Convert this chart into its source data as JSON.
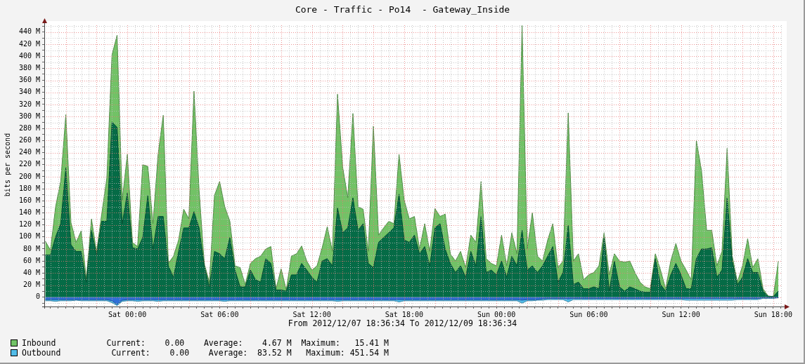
{
  "chart_data": {
    "type": "area",
    "title": "Core - Traffic - Po14  - Gateway_Inside",
    "xlabel": "From 2012/12/07 18:36:34 To 2012/12/09 18:36:34",
    "ylabel": "bits per second",
    "x": [
      "2012-12-07T18:40",
      "2012-12-07T19:00",
      "2012-12-07T19:20",
      "2012-12-07T19:40",
      "2012-12-07T20:00",
      "2012-12-07T20:20",
      "2012-12-07T20:40",
      "2012-12-07T21:00",
      "2012-12-07T21:20",
      "2012-12-07T21:40",
      "2012-12-07T22:00",
      "2012-12-07T22:20",
      "2012-12-07T22:40",
      "2012-12-07T23:00",
      "2012-12-07T23:20",
      "2012-12-07T23:40",
      "2012-12-08T00:00",
      "2012-12-08T00:20",
      "2012-12-08T00:40",
      "2012-12-08T01:00",
      "2012-12-08T01:20",
      "2012-12-08T01:40",
      "2012-12-08T02:00",
      "2012-12-08T02:20",
      "2012-12-08T02:40",
      "2012-12-08T03:00",
      "2012-12-08T03:20",
      "2012-12-08T03:40",
      "2012-12-08T04:00",
      "2012-12-08T04:20",
      "2012-12-08T04:40",
      "2012-12-08T05:00",
      "2012-12-08T05:20",
      "2012-12-08T05:40",
      "2012-12-08T06:00",
      "2012-12-08T06:20",
      "2012-12-08T06:40",
      "2012-12-08T07:00",
      "2012-12-08T07:20",
      "2012-12-08T07:40",
      "2012-12-08T08:00",
      "2012-12-08T08:20",
      "2012-12-08T08:40",
      "2012-12-08T09:00",
      "2012-12-08T09:20",
      "2012-12-08T09:40",
      "2012-12-08T10:00",
      "2012-12-08T10:20",
      "2012-12-08T10:40",
      "2012-12-08T11:00",
      "2012-12-08T11:20",
      "2012-12-08T11:40",
      "2012-12-08T12:00",
      "2012-12-08T12:20",
      "2012-12-08T12:40",
      "2012-12-08T13:00",
      "2012-12-08T13:20",
      "2012-12-08T13:40",
      "2012-12-08T14:00",
      "2012-12-08T14:20",
      "2012-12-08T14:40",
      "2012-12-08T15:00",
      "2012-12-08T15:20",
      "2012-12-08T15:40",
      "2012-12-08T16:00",
      "2012-12-08T16:20",
      "2012-12-08T16:40",
      "2012-12-08T17:00",
      "2012-12-08T17:20",
      "2012-12-08T17:40",
      "2012-12-08T18:00",
      "2012-12-08T18:20",
      "2012-12-08T18:40",
      "2012-12-08T19:00",
      "2012-12-08T19:20",
      "2012-12-08T19:40",
      "2012-12-08T20:00",
      "2012-12-08T20:20",
      "2012-12-08T20:40",
      "2012-12-08T21:00",
      "2012-12-08T21:20",
      "2012-12-08T21:40",
      "2012-12-08T22:00",
      "2012-12-08T22:20",
      "2012-12-08T22:40",
      "2012-12-08T23:00",
      "2012-12-08T23:20",
      "2012-12-08T23:40",
      "2012-12-09T00:00",
      "2012-12-09T00:20",
      "2012-12-09T00:40",
      "2012-12-09T01:00",
      "2012-12-09T01:20",
      "2012-12-09T01:40",
      "2012-12-09T02:00",
      "2012-12-09T02:20",
      "2012-12-09T02:40",
      "2012-12-09T03:00",
      "2012-12-09T03:20",
      "2012-12-09T03:40",
      "2012-12-09T04:00",
      "2012-12-09T04:20",
      "2012-12-09T04:40",
      "2012-12-09T05:00",
      "2012-12-09T05:20",
      "2012-12-09T05:40",
      "2012-12-09T06:00",
      "2012-12-09T06:20",
      "2012-12-09T06:40",
      "2012-12-09T07:00",
      "2012-12-09T07:20",
      "2012-12-09T07:40",
      "2012-12-09T08:00",
      "2012-12-09T08:20",
      "2012-12-09T08:40",
      "2012-12-09T09:00",
      "2012-12-09T09:20",
      "2012-12-09T09:40",
      "2012-12-09T10:00",
      "2012-12-09T10:20",
      "2012-12-09T10:40",
      "2012-12-09T11:00",
      "2012-12-09T11:20",
      "2012-12-09T11:40",
      "2012-12-09T12:00",
      "2012-12-09T12:20",
      "2012-12-09T12:40",
      "2012-12-09T13:00",
      "2012-12-09T13:20",
      "2012-12-09T13:40",
      "2012-12-09T14:00",
      "2012-12-09T14:20",
      "2012-12-09T14:40",
      "2012-12-09T15:00",
      "2012-12-09T15:20",
      "2012-12-09T15:40",
      "2012-12-09T16:00",
      "2012-12-09T16:20",
      "2012-12-09T16:40",
      "2012-12-09T17:00",
      "2012-12-09T17:20",
      "2012-12-09T17:40",
      "2012-12-09T18:00",
      "2012-12-09T18:20"
    ],
    "xlim": [
      "2012-12-07T18:36",
      "2012-12-09T18:36"
    ],
    "xticks": [
      {
        "value": "2012-12-07T19:00",
        "label": null
      },
      {
        "value": "2012-12-07T19:30",
        "label": null
      },
      {
        "value": "2012-12-07T20:00",
        "label": null
      },
      {
        "value": "2012-12-07T20:30",
        "label": null
      },
      {
        "value": "2012-12-07T21:00",
        "label": null
      },
      {
        "value": "2012-12-07T21:30",
        "label": null
      },
      {
        "value": "2012-12-07T22:00",
        "label": null
      },
      {
        "value": "2012-12-07T22:30",
        "label": null
      },
      {
        "value": "2012-12-07T23:00",
        "label": null
      },
      {
        "value": "2012-12-07T23:30",
        "label": null
      },
      {
        "value": "2012-12-08T00:00",
        "label": "Sat 00:00"
      },
      {
        "value": "2012-12-08T00:30",
        "label": null
      },
      {
        "value": "2012-12-08T01:00",
        "label": null
      },
      {
        "value": "2012-12-08T01:30",
        "label": null
      },
      {
        "value": "2012-12-08T02:00",
        "label": null
      },
      {
        "value": "2012-12-08T02:30",
        "label": null
      },
      {
        "value": "2012-12-08T03:00",
        "label": null
      },
      {
        "value": "2012-12-08T03:30",
        "label": null
      },
      {
        "value": "2012-12-08T04:00",
        "label": null
      },
      {
        "value": "2012-12-08T04:30",
        "label": null
      },
      {
        "value": "2012-12-08T05:00",
        "label": null
      },
      {
        "value": "2012-12-08T05:30",
        "label": null
      },
      {
        "value": "2012-12-08T06:00",
        "label": "Sat 06:00"
      },
      {
        "value": "2012-12-08T06:30",
        "label": null
      },
      {
        "value": "2012-12-08T07:00",
        "label": null
      },
      {
        "value": "2012-12-08T07:30",
        "label": null
      },
      {
        "value": "2012-12-08T08:00",
        "label": null
      },
      {
        "value": "2012-12-08T08:30",
        "label": null
      },
      {
        "value": "2012-12-08T09:00",
        "label": null
      },
      {
        "value": "2012-12-08T09:30",
        "label": null
      },
      {
        "value": "2012-12-08T10:00",
        "label": null
      },
      {
        "value": "2012-12-08T10:30",
        "label": null
      },
      {
        "value": "2012-12-08T11:00",
        "label": null
      },
      {
        "value": "2012-12-08T11:30",
        "label": null
      },
      {
        "value": "2012-12-08T12:00",
        "label": "Sat 12:00"
      },
      {
        "value": "2012-12-08T12:30",
        "label": null
      },
      {
        "value": "2012-12-08T13:00",
        "label": null
      },
      {
        "value": "2012-12-08T13:30",
        "label": null
      },
      {
        "value": "2012-12-08T14:00",
        "label": null
      },
      {
        "value": "2012-12-08T14:30",
        "label": null
      },
      {
        "value": "2012-12-08T15:00",
        "label": null
      },
      {
        "value": "2012-12-08T15:30",
        "label": null
      },
      {
        "value": "2012-12-08T16:00",
        "label": null
      },
      {
        "value": "2012-12-08T16:30",
        "label": null
      },
      {
        "value": "2012-12-08T17:00",
        "label": null
      },
      {
        "value": "2012-12-08T17:30",
        "label": null
      },
      {
        "value": "2012-12-08T18:00",
        "label": "Sat 18:00"
      },
      {
        "value": "2012-12-08T18:30",
        "label": null
      },
      {
        "value": "2012-12-08T19:00",
        "label": null
      },
      {
        "value": "2012-12-08T19:30",
        "label": null
      },
      {
        "value": "2012-12-08T20:00",
        "label": null
      },
      {
        "value": "2012-12-08T20:30",
        "label": null
      },
      {
        "value": "2012-12-08T21:00",
        "label": null
      },
      {
        "value": "2012-12-08T21:30",
        "label": null
      },
      {
        "value": "2012-12-08T22:00",
        "label": null
      },
      {
        "value": "2012-12-08T22:30",
        "label": null
      },
      {
        "value": "2012-12-08T23:00",
        "label": null
      },
      {
        "value": "2012-12-08T23:30",
        "label": null
      },
      {
        "value": "2012-12-09T00:00",
        "label": "Sun 00:00"
      },
      {
        "value": "2012-12-09T00:30",
        "label": null
      },
      {
        "value": "2012-12-09T01:00",
        "label": null
      },
      {
        "value": "2012-12-09T01:30",
        "label": null
      },
      {
        "value": "2012-12-09T02:00",
        "label": null
      },
      {
        "value": "2012-12-09T02:30",
        "label": null
      },
      {
        "value": "2012-12-09T03:00",
        "label": null
      },
      {
        "value": "2012-12-09T03:30",
        "label": null
      },
      {
        "value": "2012-12-09T04:00",
        "label": null
      },
      {
        "value": "2012-12-09T04:30",
        "label": null
      },
      {
        "value": "2012-12-09T05:00",
        "label": null
      },
      {
        "value": "2012-12-09T05:30",
        "label": null
      },
      {
        "value": "2012-12-09T06:00",
        "label": "Sun 06:00"
      },
      {
        "value": "2012-12-09T06:30",
        "label": null
      },
      {
        "value": "2012-12-09T07:00",
        "label": null
      },
      {
        "value": "2012-12-09T07:30",
        "label": null
      },
      {
        "value": "2012-12-09T08:00",
        "label": null
      },
      {
        "value": "2012-12-09T08:30",
        "label": null
      },
      {
        "value": "2012-12-09T09:00",
        "label": null
      },
      {
        "value": "2012-12-09T09:30",
        "label": null
      },
      {
        "value": "2012-12-09T10:00",
        "label": null
      },
      {
        "value": "2012-12-09T10:30",
        "label": null
      },
      {
        "value": "2012-12-09T11:00",
        "label": null
      },
      {
        "value": "2012-12-09T11:30",
        "label": null
      },
      {
        "value": "2012-12-09T12:00",
        "label": "Sun 12:00"
      },
      {
        "value": "2012-12-09T12:30",
        "label": null
      },
      {
        "value": "2012-12-09T13:00",
        "label": null
      },
      {
        "value": "2012-12-09T13:30",
        "label": null
      },
      {
        "value": "2012-12-09T14:00",
        "label": null
      },
      {
        "value": "2012-12-09T14:30",
        "label": null
      },
      {
        "value": "2012-12-09T15:00",
        "label": null
      },
      {
        "value": "2012-12-09T15:30",
        "label": null
      },
      {
        "value": "2012-12-09T16:00",
        "label": null
      },
      {
        "value": "2012-12-09T16:30",
        "label": null
      },
      {
        "value": "2012-12-09T17:00",
        "label": null
      },
      {
        "value": "2012-12-09T17:30",
        "label": null
      },
      {
        "value": "2012-12-09T18:00",
        "label": "Sun 18:00"
      },
      {
        "value": "2012-12-09T18:30",
        "label": null
      }
    ],
    "ylim": [
      -15.5,
      451.5
    ],
    "yticks": [
      {
        "value": -10,
        "label": null
      },
      0,
      {
        "value": 10,
        "label": null
      },
      {
        "value": 20,
        "label": "20 M"
      },
      {
        "value": 30,
        "label": null
      },
      {
        "value": 40,
        "label": "40 M"
      },
      {
        "value": 50,
        "label": null
      },
      {
        "value": 60,
        "label": "60 M"
      },
      {
        "value": 70,
        "label": null
      },
      {
        "value": 80,
        "label": "80 M"
      },
      {
        "value": 90,
        "label": null
      },
      {
        "value": 100,
        "label": "100 M"
      },
      {
        "value": 110,
        "label": null
      },
      {
        "value": 120,
        "label": "120 M"
      },
      {
        "value": 130,
        "label": null
      },
      {
        "value": 140,
        "label": "140 M"
      },
      {
        "value": 150,
        "label": null
      },
      {
        "value": 160,
        "label": "160 M"
      },
      {
        "value": 170,
        "label": null
      },
      {
        "value": 180,
        "label": "180 M"
      },
      {
        "value": 190,
        "label": null
      },
      {
        "value": 200,
        "label": "200 M"
      },
      {
        "value": 210,
        "label": null
      },
      {
        "value": 220,
        "label": "220 M"
      },
      {
        "value": 230,
        "label": null
      },
      {
        "value": 240,
        "label": "240 M"
      },
      {
        "value": 250,
        "label": null
      },
      {
        "value": 260,
        "label": "260 M"
      },
      {
        "value": 270,
        "label": null
      },
      {
        "value": 280,
        "label": "280 M"
      },
      {
        "value": 290,
        "label": null
      },
      {
        "value": 300,
        "label": "300 M"
      },
      {
        "value": 310,
        "label": null
      },
      {
        "value": 320,
        "label": "320 M"
      },
      {
        "value": 330,
        "label": null
      },
      {
        "value": 340,
        "label": "340 M"
      },
      {
        "value": 350,
        "label": null
      },
      {
        "value": 360,
        "label": "360 M"
      },
      {
        "value": 370,
        "label": null
      },
      {
        "value": 380,
        "label": "380 M"
      },
      {
        "value": 390,
        "label": null
      },
      {
        "value": 400,
        "label": "400 M"
      },
      {
        "value": 410,
        "label": null
      },
      {
        "value": 420,
        "label": "420 M"
      },
      {
        "value": 430,
        "label": null
      },
      {
        "value": 440,
        "label": "440 M"
      },
      {
        "value": 450,
        "label": null
      }
    ],
    "series": [
      {
        "name": "Inbound",
        "color": "#72c266",
        "values": [
          93,
          78,
          150,
          192,
          303,
          124,
          91,
          110,
          30,
          130,
          75,
          138,
          198,
          402,
          435,
          161,
          237,
          91,
          84,
          220,
          217,
          122,
          237,
          302,
          56,
          68,
          95,
          146,
          130,
          342,
          177,
          56,
          25,
          169,
          192,
          150,
          126,
          52,
          49,
          21,
          56,
          64,
          68,
          80,
          84,
          14,
          47,
          12,
          68,
          72,
          85,
          60,
          45,
          52,
          82,
          117,
          76,
          337,
          216,
          165,
          305,
          150,
          146,
          76,
          284,
          103,
          115,
          126,
          122,
          237,
          161,
          130,
          134,
          80,
          122,
          76,
          147,
          134,
          138,
          72,
          60,
          76,
          49,
          103,
          91,
          192,
          64,
          56,
          52,
          103,
          52,
          107,
          72,
          451,
          80,
          140,
          68,
          60,
          95,
          122,
          49,
          60,
          306,
          60,
          72,
          29,
          37,
          41,
          52,
          107,
          37,
          72,
          60,
          58,
          60,
          41,
          25,
          17,
          14,
          72,
          45,
          14,
          60,
          89,
          60,
          45,
          29,
          260,
          210,
          111,
          111,
          52,
          76,
          247,
          68,
          25,
          52,
          97,
          49,
          64,
          14,
          2,
          1,
          60
        ]
      },
      {
        "color": "#056b46",
        "values": [
          70,
          70,
          100,
          122,
          215,
          87,
          76,
          76,
          25,
          111,
          70,
          126,
          126,
          291,
          282,
          122,
          173,
          82,
          80,
          99,
          169,
          80,
          134,
          134,
          52,
          33,
          76,
          115,
          115,
          142,
          115,
          52,
          17,
          76,
          72,
          64,
          99,
          45,
          17,
          17,
          45,
          29,
          25,
          64,
          56,
          12,
          12,
          10,
          37,
          37,
          56,
          45,
          33,
          25,
          60,
          64,
          52,
          148,
          107,
          115,
          165,
          111,
          122,
          56,
          49,
          91,
          99,
          107,
          115,
          171,
          95,
          91,
          103,
          72,
          84,
          52,
          115,
          122,
          80,
          56,
          41,
          52,
          33,
          76,
          52,
          134,
          41,
          45,
          37,
          60,
          33,
          68,
          52,
          111,
          45,
          52,
          41,
          52,
          68,
          84,
          25,
          41,
          119,
          21,
          25,
          14,
          14,
          17,
          14,
          99,
          10,
          60,
          17,
          10,
          17,
          14,
          10,
          8,
          8,
          64,
          21,
          10,
          37,
          56,
          37,
          14,
          14,
          64,
          80,
          80,
          82,
          33,
          45,
          165,
          60,
          21,
          33,
          64,
          41,
          41,
          10,
          1,
          1,
          10
        ]
      },
      {
        "name": "Outbound",
        "color": "#52bce8",
        "values": [
          -6,
          -6,
          -7,
          -6,
          -6,
          -6,
          -5,
          -6,
          -6,
          -6,
          -6,
          -6,
          -6,
          -9,
          -14,
          -7,
          -6,
          -6,
          -7,
          -6,
          -6,
          -6,
          -7,
          -6,
          -6,
          -6,
          -6,
          -6,
          -6,
          -6,
          -6,
          -6,
          -6,
          -6,
          -6,
          -7,
          -6,
          -6,
          -6,
          -6,
          -6,
          -6,
          -6,
          -6,
          -6,
          -6,
          -6,
          -6,
          -6,
          -6,
          -6,
          -6,
          -6,
          -6,
          -6,
          -6,
          -6,
          -7,
          -6,
          -6,
          -6,
          -6,
          -6,
          -6,
          -6,
          -6,
          -6,
          -6,
          -6,
          -8,
          -6,
          -6,
          -6,
          -6,
          -6,
          -6,
          -6,
          -6,
          -6,
          -6,
          -6,
          -6,
          -6,
          -6,
          -6,
          -6,
          -6,
          -6,
          -6,
          -6,
          -6,
          -6,
          -6,
          -10,
          -6,
          -6,
          -5,
          -5,
          -4,
          -4,
          -4,
          -4,
          -8,
          -4,
          -4,
          -4,
          -4,
          -4,
          -4,
          -4,
          -4,
          -4,
          -4,
          -4,
          -4,
          -4,
          -4,
          -4,
          -4,
          -4,
          -4,
          -4,
          -4,
          -4,
          -4,
          -5,
          -5,
          -5,
          -5,
          -5,
          -5,
          -5,
          -5,
          -5,
          -5,
          -4,
          -4,
          -4,
          -4,
          -4,
          -2,
          -2,
          -2,
          -1
        ]
      },
      {
        "color": "#2e6fd8",
        "values": [
          -4,
          -4,
          -4,
          -4,
          -4,
          -4,
          -4,
          -4,
          -4,
          -4,
          -4,
          -4,
          -4,
          -6,
          -12,
          -5,
          -4,
          -4,
          -4,
          -4,
          -4,
          -4,
          -4,
          -4,
          -4,
          -4,
          -4,
          -4,
          -4,
          -4,
          -4,
          -4,
          -4,
          -4,
          -4,
          -4,
          -4,
          -4,
          -4,
          -4,
          -4,
          -4,
          -4,
          -4,
          -4,
          -4,
          -4,
          -4,
          -4,
          -4,
          -4,
          -4,
          -4,
          -4,
          -4,
          -4,
          -4,
          -4,
          -4,
          -4,
          -4,
          -4,
          -4,
          -4,
          -4,
          -4,
          -4,
          -4,
          -4,
          -4,
          -4,
          -4,
          -4,
          -4,
          -4,
          -4,
          -4,
          -4,
          -4,
          -4,
          -4,
          -4,
          -4,
          -4,
          -4,
          -4,
          -4,
          -4,
          -4,
          -4,
          -4,
          -4,
          -4,
          -5,
          -4,
          -4,
          -4,
          -3,
          -2,
          -2,
          -2,
          -2,
          -3,
          -2,
          -2,
          -2,
          -2,
          -2,
          -2,
          -2,
          -2,
          -2,
          -2,
          -2,
          -2,
          -2,
          -2,
          -2,
          -2,
          -2,
          -2,
          -2,
          -2,
          -2,
          -2,
          -2,
          -2,
          -2,
          -2,
          -2,
          -2,
          -2,
          -2,
          -2,
          -2,
          -2,
          -2,
          -2,
          -2,
          -2,
          -1,
          -1,
          -1,
          -1
        ]
      }
    ],
    "grid": true,
    "legend": "bottom",
    "annotations": [
      "Current:    0.00    Average:    4.67 M  Maximum:   15.41 M",
      "Current:    0.00    Average:  83.52 M   Maximum: 451.54 M"
    ]
  }
}
